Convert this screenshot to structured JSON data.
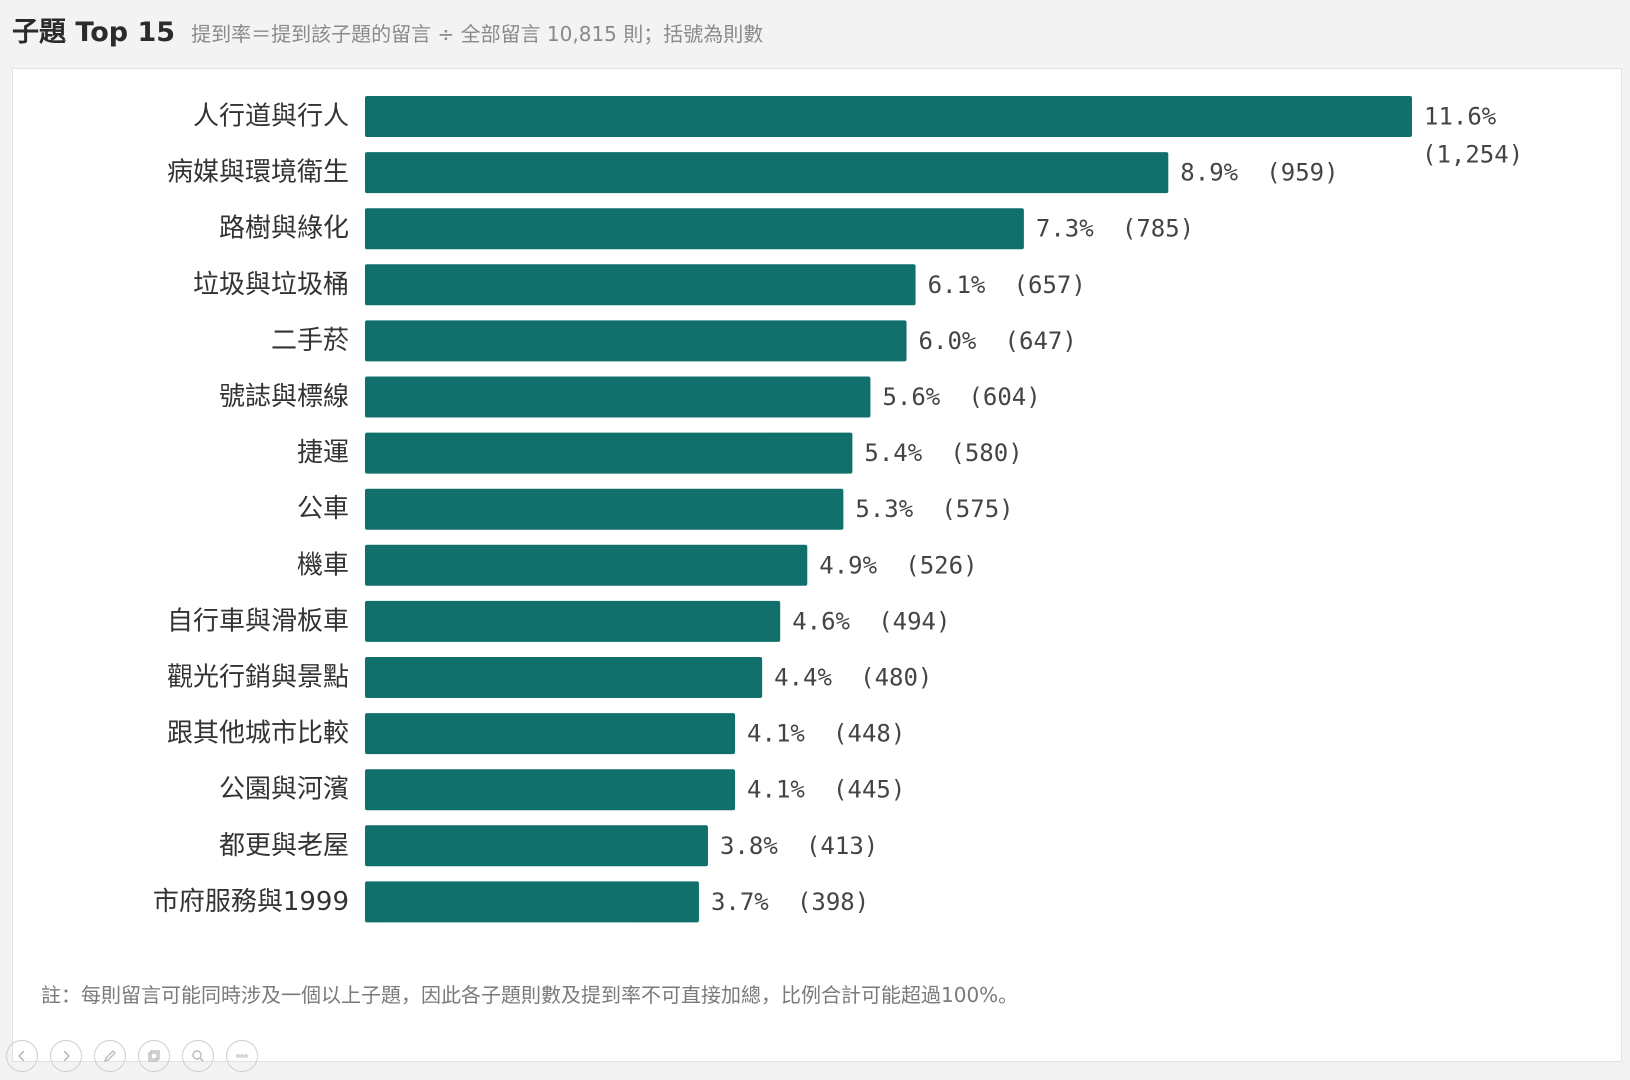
{
  "header": {
    "title": "子題 Top 15",
    "subtitle": "提到率＝提到該子題的留言 ÷ 全部留言 10,815 則；括號為則數"
  },
  "footnote": "註：每則留言可能同時涉及一個以上子題，因此各子題則數及提到率不可直接加總，比例合計可能超過100%。",
  "colors": {
    "bar": "#12706c"
  },
  "toolbar": {
    "icons": [
      "prev-icon",
      "next-icon",
      "pen-icon",
      "copy-icon",
      "zoom-icon",
      "more-icon"
    ]
  },
  "chart_data": {
    "type": "bar",
    "orientation": "horizontal",
    "categories": [
      "人行道與行人",
      "病媒與環境衛生",
      "路樹與綠化",
      "垃圾與垃圾桶",
      "二手菸",
      "號誌與標線",
      "捷運",
      "公車",
      "機車",
      "自行車與滑板車",
      "觀光行銷與景點",
      "跟其他城市比較",
      "公園與河濱",
      "都更與老屋",
      "市府服務與1999"
    ],
    "values": [
      11.6,
      8.9,
      7.3,
      6.1,
      6.0,
      5.6,
      5.4,
      5.3,
      4.9,
      4.6,
      4.4,
      4.1,
      4.1,
      3.8,
      3.7
    ],
    "value_labels": [
      "11.6%",
      "8.9%",
      "7.3%",
      "6.1%",
      "6.0%",
      "5.6%",
      "5.4%",
      "5.3%",
      "4.9%",
      "4.6%",
      "4.4%",
      "4.1%",
      "4.1%",
      "3.8%",
      "3.7%"
    ],
    "count_labels": [
      "(1,254)",
      "(959)",
      "(785)",
      "(657)",
      "(647)",
      "(604)",
      "(580)",
      "(575)",
      "(526)",
      "(494)",
      "(480)",
      "(448)",
      "(445)",
      "(413)",
      "(398)"
    ],
    "xlim": [
      0,
      11.6
    ],
    "grid": false,
    "legend": "none"
  }
}
